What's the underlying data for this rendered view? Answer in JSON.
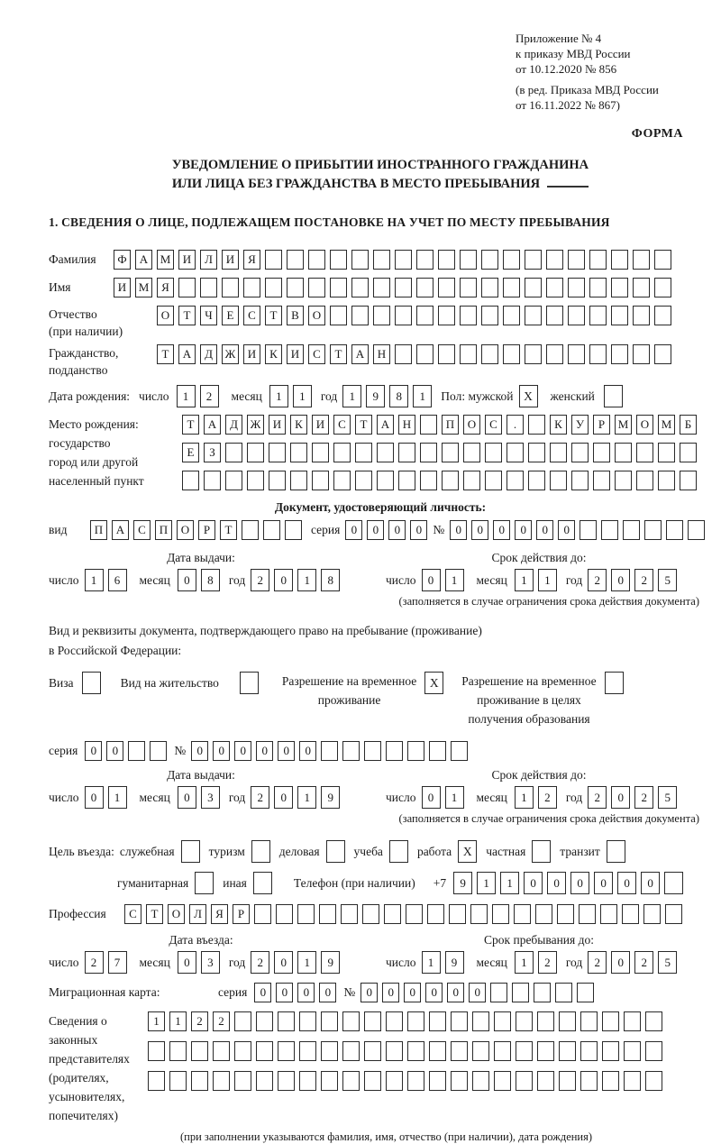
{
  "colors": {
    "ink": "#1a1a1a",
    "paper": "#ffffff"
  },
  "meta": {
    "appendix": [
      "Приложение № 4",
      "к приказу МВД России",
      "от 10.12.2020 № 856"
    ],
    "revision": [
      "(в ред. Приказа МВД России",
      "от 16.11.2022 № 867)"
    ],
    "form_label": "ФОРМА"
  },
  "title": {
    "line1": "УВЕДОМЛЕНИЕ О ПРИБЫТИИ ИНОСТРАННОГО ГРАЖДАНИНА",
    "line2": "ИЛИ ЛИЦА БЕЗ ГРАЖДАНСТВА В МЕСТО ПРЕБЫВАНИЯ"
  },
  "section1_heading": "1. СВЕДЕНИЯ О ЛИЦЕ, ПОДЛЕЖАЩЕМ ПОСТАНОВКЕ НА УЧЕТ ПО МЕСТУ ПРЕБЫВАНИЯ",
  "labels": {
    "surname": "Фамилия",
    "name": "Имя",
    "patronymic1": "Отчество",
    "patronymic2": "(при наличии)",
    "citizenship1": "Гражданство,",
    "citizenship2": "подданство",
    "birth_date": "Дата рождения:",
    "day": "число",
    "month": "месяц",
    "year": "год",
    "sex_male": "Пол: мужской",
    "sex_female": "женский",
    "birth_place": [
      "Место рождения:",
      "государство",
      "город или другой",
      "населенный пункт"
    ],
    "identity_doc_heading": "Документ, удостоверяющий личность:",
    "kind": "вид",
    "series": "серия",
    "number": "№",
    "issue_date": "Дата выдачи:",
    "valid_until": "Срок действия до:",
    "validity_note": "(заполняется в случае ограничения срока действия документа)",
    "stay_doc_intro1": "Вид и реквизиты документа, подтверждающего право на пребывание (проживание)",
    "stay_doc_intro2": "в Российской Федерации:",
    "phone": "Телефон (при наличии)",
    "phone_prefix": "+7",
    "profession": "Профессия",
    "entry_date": "Дата въезда:",
    "stay_until": "Срок пребывания до:",
    "migration_card": "Миграционная карта:",
    "representatives": [
      "Сведения о",
      "законных",
      "представителях",
      "(родителях,",
      "усыновителях,",
      "попечителях)"
    ],
    "representatives_note": "(при заполнении указываются фамилия, имя, отчество (при наличии), дата рождения)"
  },
  "person": {
    "surname": {
      "v": "ФАМИЛИЯ",
      "n": 26
    },
    "name": {
      "v": "ИМЯ",
      "n": 26
    },
    "patronymic": {
      "v": "ОТЧЕСТВО",
      "n": 24
    },
    "citizenship": {
      "v": "ТАДЖИКИСТАН",
      "n": 24
    },
    "birth": {
      "day": {
        "v": "12",
        "n": 2
      },
      "month": {
        "v": "11",
        "n": 2
      },
      "year": {
        "v": "1981",
        "n": 4
      }
    },
    "sex_male_checked": true,
    "sex_female_checked": false,
    "birth_place_rows": [
      {
        "v": "ТАДЖИКИСТАН ПОС. КУРМОМБ",
        "n": 24
      },
      {
        "v": "ЕЗ",
        "n": 24
      },
      {
        "v": "",
        "n": 24
      }
    ]
  },
  "identity_doc": {
    "kind": {
      "v": "ПАСПОРТ",
      "n": 10
    },
    "series": {
      "v": "0000",
      "n": 4
    },
    "number": {
      "v": "000000",
      "n": 12
    },
    "issue": {
      "day": {
        "v": "16",
        "n": 2
      },
      "month": {
        "v": "08",
        "n": 2
      },
      "year": {
        "v": "2018",
        "n": 4
      }
    },
    "valid": {
      "day": {
        "v": "01",
        "n": 2
      },
      "month": {
        "v": "11",
        "n": 2
      },
      "year": {
        "v": "2025",
        "n": 4
      }
    }
  },
  "stay_doc": {
    "options": [
      {
        "lines": [
          "Виза"
        ],
        "checked": false
      },
      {
        "lines": [
          "Вид на жительство"
        ],
        "checked": false
      },
      {
        "lines": [
          "Разрешение на временное",
          "проживание"
        ],
        "checked": true
      },
      {
        "lines": [
          "Разрешение на временное",
          "проживание в целях",
          "получения образования"
        ],
        "checked": false
      }
    ],
    "series": {
      "v": "00",
      "n": 4
    },
    "number": {
      "v": "000000",
      "n": 13
    },
    "issue": {
      "day": {
        "v": "01",
        "n": 2
      },
      "month": {
        "v": "03",
        "n": 2
      },
      "year": {
        "v": "2019",
        "n": 4
      }
    },
    "valid": {
      "day": {
        "v": "01",
        "n": 2
      },
      "month": {
        "v": "12",
        "n": 2
      },
      "year": {
        "v": "2025",
        "n": 4
      }
    }
  },
  "purpose": {
    "lead": "Цель въезда:",
    "row1": [
      {
        "label": "служебная",
        "checked": false
      },
      {
        "label": "туризм",
        "checked": false
      },
      {
        "label": "деловая",
        "checked": false
      },
      {
        "label": "учеба",
        "checked": false
      },
      {
        "label": "работа",
        "checked": true
      },
      {
        "label": "частная",
        "checked": false
      },
      {
        "label": "транзит",
        "checked": false
      }
    ],
    "row2": [
      {
        "label": "гуманитарная",
        "checked": false
      },
      {
        "label": "иная",
        "checked": false
      }
    ]
  },
  "phone": {
    "v": "911000000",
    "n": 10
  },
  "profession": {
    "v": "СТОЛЯР",
    "n": 26
  },
  "entry": {
    "day": {
      "v": "27",
      "n": 2
    },
    "month": {
      "v": "03",
      "n": 2
    },
    "year": {
      "v": "2019",
      "n": 4
    }
  },
  "stay_until": {
    "day": {
      "v": "19",
      "n": 2
    },
    "month": {
      "v": "12",
      "n": 2
    },
    "year": {
      "v": "2025",
      "n": 4
    }
  },
  "migration_card": {
    "series": {
      "v": "0000",
      "n": 4
    },
    "number": {
      "v": "000000",
      "n": 11
    }
  },
  "representatives_rows": [
    {
      "v": "1122",
      "n": 24
    },
    {
      "v": "",
      "n": 24
    },
    {
      "v": "",
      "n": 24
    }
  ]
}
